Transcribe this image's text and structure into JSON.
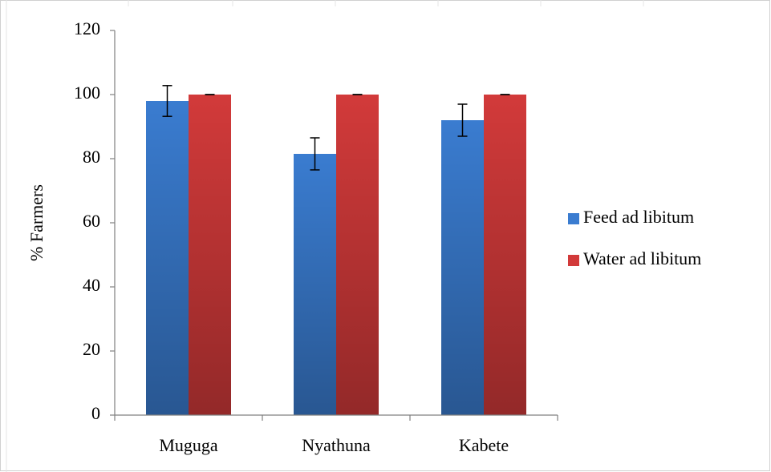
{
  "chart_data": {
    "type": "bar",
    "ylabel": "% Farmers",
    "categories": [
      "Muguga",
      "Nyathuna",
      "Kabete"
    ],
    "series": [
      {
        "name": "Feed ad libitum",
        "color": "#3a7cd0",
        "values": [
          98,
          81.5,
          92
        ],
        "errors": [
          4.8,
          5,
          5
        ]
      },
      {
        "name": "Water ad libitum",
        "color": "#d23a3a",
        "values": [
          100,
          100,
          100
        ],
        "errors": [
          0,
          0,
          0
        ]
      }
    ],
    "ylim": [
      0,
      120
    ],
    "yticks": [
      0,
      20,
      40,
      60,
      80,
      100,
      120
    ],
    "legend": "right"
  }
}
